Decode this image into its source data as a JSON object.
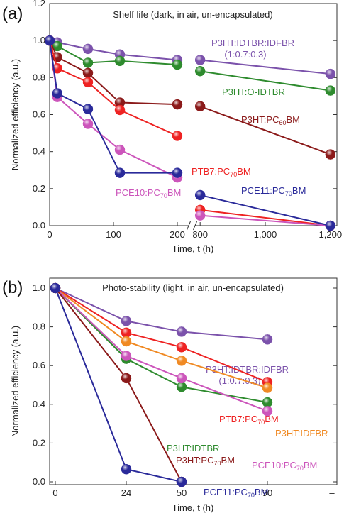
{
  "chart_data": [
    {
      "panel_label": "(a)",
      "type": "line",
      "title": "Shelf life (dark, in air, un-encapsulated)",
      "xlabel": "Time, t (h)",
      "ylabel": "Normalized efficiency (a.u.)",
      "ylim": [
        0,
        1.2
      ],
      "yticks": [
        0.0,
        0.2,
        0.4,
        0.6,
        0.8,
        1.0,
        1.2
      ],
      "x_segments": [
        {
          "range": [
            0,
            220
          ],
          "ticks": [
            0,
            100,
            200
          ],
          "tick_labels": [
            "0",
            "100",
            "200"
          ]
        },
        {
          "range": [
            780,
            1220
          ],
          "ticks": [
            800,
            1000,
            1200
          ],
          "tick_labels": [
            "800",
            "1,000",
            "1,200"
          ]
        }
      ],
      "legend_placement": "inline labels next to curves",
      "series": [
        {
          "name": "P3HT:IDTBR:IDFBR",
          "name_line2": "(1:0.7:0.3)",
          "color": "#7b52ab",
          "x": [
            0,
            12,
            60,
            110,
            200,
            800,
            1200
          ],
          "y": [
            1.0,
            0.99,
            0.955,
            0.925,
            0.895,
            0.895,
            0.82
          ]
        },
        {
          "name": "P3HT:O-IDTBR",
          "color": "#2e8b2e",
          "x": [
            0,
            12,
            60,
            110,
            200,
            800,
            1200
          ],
          "y": [
            1.0,
            0.97,
            0.88,
            0.89,
            0.87,
            0.835,
            0.73
          ]
        },
        {
          "name": "P3HT:PC60BM",
          "name_prefix": "P3HT:PC",
          "name_sub": "60",
          "name_suffix": "BM",
          "color": "#8b1a1a",
          "x": [
            0,
            12,
            60,
            110,
            200,
            800,
            1200
          ],
          "y": [
            1.0,
            0.91,
            0.825,
            0.665,
            0.655,
            0.645,
            0.385
          ]
        },
        {
          "name": "PTB7:PC70BM",
          "name_prefix": "PTB7:PC",
          "name_sub": "70",
          "name_suffix": "BM",
          "color": "#ee2222",
          "x": [
            0,
            12,
            60,
            110,
            200,
            800,
            1200
          ],
          "y": [
            1.0,
            0.85,
            0.775,
            0.625,
            0.485,
            0.085,
            0.0
          ]
        },
        {
          "name": "PCE10:PC70BM",
          "name_prefix": "PCE10:PC",
          "name_sub": "70",
          "name_suffix": "BM",
          "color": "#cc55bb",
          "x": [
            0,
            12,
            60,
            110,
            200,
            800,
            1200
          ],
          "y": [
            1.0,
            0.695,
            0.55,
            0.41,
            0.26,
            0.055,
            0.0
          ]
        },
        {
          "name": "PCE11:PC70BM",
          "name_prefix": "PCE11:PC",
          "name_sub": "70",
          "name_suffix": "BM",
          "color": "#2a2a9a",
          "x": [
            0,
            12,
            60,
            110,
            200,
            800,
            1200
          ],
          "y": [
            1.0,
            0.715,
            0.63,
            0.285,
            0.285,
            0.165,
            0.0
          ]
        }
      ]
    },
    {
      "panel_label": "(b)",
      "type": "line",
      "title": "Photo-stability (light, in air, un-encapsulated)",
      "xlabel": "Time, t (h)",
      "ylabel": "Normalized efficiency (a.u.)",
      "ylim": [
        0,
        1.0
      ],
      "yticks": [
        0.0,
        0.2,
        0.4,
        0.6,
        0.8,
        1.0
      ],
      "categories": [
        "0",
        "24",
        "50",
        "90",
        "–"
      ],
      "legend_placement": "inline labels next to curves",
      "series": [
        {
          "name": "P3HT:IDTBR:IDFBR",
          "name_line2": "(1:0.7:0.3)",
          "color": "#7b52ab",
          "x": [
            "0",
            "24",
            "50",
            "90"
          ],
          "y": [
            1.0,
            0.83,
            0.775,
            0.735
          ]
        },
        {
          "name": "PTB7:PC70BM",
          "name_prefix": "PTB7:PC",
          "name_sub": "70",
          "name_suffix": "BM",
          "color": "#ee2222",
          "x": [
            "0",
            "24",
            "50",
            "90"
          ],
          "y": [
            1.0,
            0.77,
            0.695,
            0.515
          ]
        },
        {
          "name": "P3HT:IDFBR",
          "color": "#f08a24",
          "x": [
            "0",
            "24",
            "50",
            "90"
          ],
          "y": [
            1.0,
            0.725,
            0.625,
            0.485
          ]
        },
        {
          "name": "P3HT:IDTBR",
          "color": "#2e8b2e",
          "x": [
            "0",
            "24",
            "50",
            "90"
          ],
          "y": [
            1.0,
            0.635,
            0.49,
            0.41
          ]
        },
        {
          "name": "PCE10:PC70BM",
          "name_prefix": "PCE10:PC",
          "name_sub": "70",
          "name_suffix": "BM",
          "color": "#cc55bb",
          "x": [
            "0",
            "24",
            "50",
            "90"
          ],
          "y": [
            1.0,
            0.65,
            0.535,
            0.365
          ]
        },
        {
          "name": "P3HT:PC70BM",
          "name_prefix": "P3HT:PC",
          "name_sub": "70",
          "name_suffix": "BM",
          "color": "#8b1a1a",
          "x": [
            "0",
            "24",
            "50"
          ],
          "y": [
            1.0,
            0.535,
            0.0
          ]
        },
        {
          "name": "PCE11:PC70BM",
          "name_prefix": "PCE11:PC",
          "name_sub": "70",
          "name_suffix": "BM",
          "color": "#2a2a9a",
          "x": [
            "0",
            "24",
            "50"
          ],
          "y": [
            1.0,
            0.065,
            0.0
          ]
        }
      ]
    }
  ]
}
